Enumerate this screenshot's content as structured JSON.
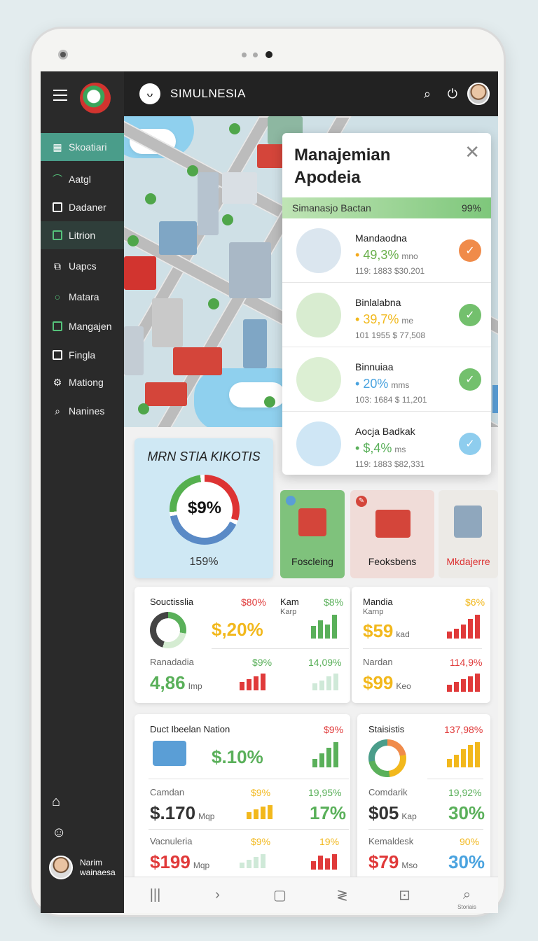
{
  "app": {
    "title": "SIMULNESIA"
  },
  "sidebar": {
    "items": [
      {
        "label": "Skoatiari",
        "icon": "grid-icon"
      },
      {
        "label": "Aatgl",
        "icon": "leaf-icon"
      },
      {
        "label": "Dadaner",
        "icon": "square-icon"
      },
      {
        "label": "Litrion",
        "icon": "square-icon"
      },
      {
        "label": "Uapcs",
        "icon": "copy-icon"
      },
      {
        "label": "Matara",
        "icon": "circle-icon"
      },
      {
        "label": "Mangajen",
        "icon": "square-icon"
      },
      {
        "label": "Fingla",
        "icon": "square-icon"
      },
      {
        "label": "Mationg",
        "icon": "gear-icon"
      },
      {
        "label": "Nanines",
        "icon": "search-icon"
      }
    ],
    "profile": {
      "line1": "Narim",
      "line2": "wainaesa"
    }
  },
  "dialog": {
    "title": "Manajemian Apodeia",
    "bar_label": "Simanasjo Bactan",
    "bar_value": "99%",
    "rows": [
      {
        "name": "Mandaodna",
        "value": "49,3%",
        "unit": "mno",
        "sub": "119: 1883 $30.201",
        "value_color": "#6ab04c",
        "dot": "#f4a91c",
        "check_color": "#f08b4a",
        "thumb": "#dbe6ef"
      },
      {
        "name": "Binlalabna",
        "value": "39,7%",
        "unit": "me",
        "sub": "101 1955 $ 77,508",
        "value_color": "#f1b81c",
        "dot": "#f1b81c",
        "check_color": "#73c06d",
        "thumb": "#d8ecd0"
      },
      {
        "name": "Binnuiaa",
        "value": "20%",
        "unit": "mms",
        "sub": "103: 1684 $ 11,201",
        "value_color": "#4aa3df",
        "dot": "#4aa3df",
        "check_color": "#73c06d",
        "thumb": "#dcefd3"
      },
      {
        "name": "Aocja Badkak",
        "value": "$,4%",
        "unit": "ms",
        "sub": "119: 1883 $82,331",
        "value_color": "#5ab05a",
        "dot": "#5ab05a",
        "check_color": "#8ecdee",
        "thumb": "#cfe6f5"
      }
    ]
  },
  "circle_card": {
    "title": "MRN STIA KIKOTIS",
    "center": "$9%",
    "bottom": "159%",
    "fraction": 0.96
  },
  "tiles": [
    {
      "label": "Foscleing",
      "label_color": "#222"
    },
    {
      "label": "Feoksbens",
      "label_color": "#222"
    },
    {
      "label": "Mkdajerre",
      "label_color": "#d33"
    }
  ],
  "stats": {
    "c1": {
      "title": "Souctisslia",
      "title_pct": "$80%",
      "col2_title": "Kam",
      "col2_sub": "Karp",
      "col2_pct": "$8%",
      "big1": "$,20%",
      "row2_title": "Ranadadia",
      "row2_pct": "$9%",
      "row2_pct2": "14,09%",
      "big2": "4,86",
      "big2_unit": "Imp"
    },
    "c2": {
      "title": "Mandia",
      "sub": "Karnp",
      "pct": "$6%",
      "big1": "$59",
      "big1_unit": "kad",
      "row2_title": "Nardan",
      "row2_pct": "114,9%",
      "big2": "$99",
      "big2_unit": "Keo"
    },
    "c3": {
      "title": "Duct Ibeelan Nation",
      "pct": "$9%",
      "big1": "$.10%",
      "r2_title": "Camdan",
      "r2_pct1": "$9%",
      "r2_pct2": "19,95%",
      "r2_big": "$.170",
      "r2_unit": "Mqp",
      "r2_big2": "17%",
      "r3_title": "Vacnuleria",
      "r3_pct1": "$9%",
      "r3_pct2": "19%",
      "r3_big": "$199",
      "r3_unit": "Mqp"
    },
    "c4": {
      "title": "Staisistis",
      "pct": "137,98%",
      "r2_title": "Comdarik",
      "r2_pct": "19,92%",
      "r2_big": "$05",
      "r2_unit": "Kap",
      "r2_big2": "30%",
      "r3_title": "Kemaldesk",
      "r3_pct": "90%",
      "r3_big": "$79",
      "r3_unit": "Mso",
      "r3_big2": "30%"
    }
  },
  "bottom_nav": {
    "last_label": "Storiais"
  },
  "colors": {
    "accent": "#4a9d8a",
    "red": "#e03a3a",
    "green": "#5ab05a",
    "yellow": "#f2b81c"
  }
}
